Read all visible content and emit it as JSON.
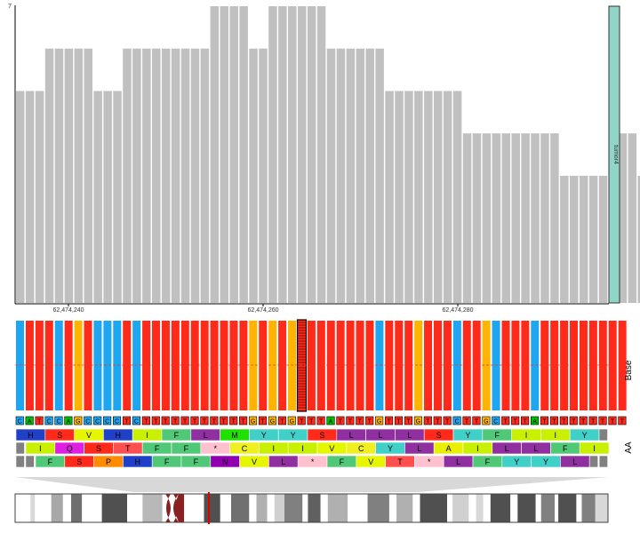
{
  "coverage": {
    "axis_max_label": "7",
    "values": [
      5,
      5,
      5,
      6,
      6,
      6,
      6,
      6,
      5,
      5,
      5,
      6,
      6,
      6,
      6,
      6,
      6,
      6,
      6,
      6,
      7,
      7,
      7,
      7,
      6,
      6,
      7,
      7,
      7,
      7,
      7,
      7,
      6,
      6,
      6,
      6,
      6,
      6,
      5,
      5,
      5,
      5,
      5,
      5,
      5,
      5,
      4,
      4,
      4,
      4,
      4,
      4,
      4,
      4,
      4,
      4,
      3,
      3,
      3,
      3,
      3,
      3,
      4,
      4,
      3
    ],
    "ymax": 7,
    "sample_label": "tumor4",
    "sample_color": "#90d5c8",
    "bar_color": "#c0c0c0",
    "ruler_labels": [
      "62,474,240",
      "62,474,260",
      "62,474,280"
    ]
  },
  "base_track": {
    "label": "Base",
    "colors": {
      "A": "#00c000",
      "C": "#1ea6f0",
      "G": "#ffb400",
      "T": "#ff2a1a"
    },
    "reads": "CTTTCTGTCCCTCTTTTTTTTTTTGTGTGTTTTTTTTCTTTGTTTCTTGCTTTCTTTTTTTTT",
    "reference": "CATCCAGCCCCTCTTTTTTTTTTTGTGTGTTTATTTTGTTTGTTTCTTGCTTTATTTTTTTTT",
    "highlight_index": 29
  },
  "aa_track": {
    "label": "AA",
    "frames": [
      [
        {
          "aa": "H",
          "color": "#2040c8"
        },
        {
          "aa": "S",
          "color": "#ff2a1a"
        },
        {
          "aa": "V",
          "color": "#e6f500"
        },
        {
          "aa": "H",
          "color": "#2040c8"
        },
        {
          "aa": "I",
          "color": "#c8f000"
        },
        {
          "aa": "F",
          "color": "#50c878"
        },
        {
          "aa": "L",
          "color": "#9030a0"
        },
        {
          "aa": "M",
          "color": "#20e000"
        },
        {
          "aa": "Y",
          "color": "#40d0c8"
        },
        {
          "aa": "Y",
          "color": "#40d0c8"
        },
        {
          "aa": "S",
          "color": "#ff2a1a"
        },
        {
          "aa": "L",
          "color": "#9030a0"
        },
        {
          "aa": "L",
          "color": "#9030a0"
        },
        {
          "aa": "L",
          "color": "#9030a0"
        },
        {
          "aa": "S",
          "color": "#ff2a1a"
        },
        {
          "aa": "Y",
          "color": "#40d0c8"
        },
        {
          "aa": "F",
          "color": "#50c878"
        },
        {
          "aa": "I",
          "color": "#c8f000"
        },
        {
          "aa": "I",
          "color": "#c8f000"
        },
        {
          "aa": "Y",
          "color": "#40d0c8"
        }
      ],
      [
        {
          "aa": "I",
          "color": "#c8f000"
        },
        {
          "aa": "Q",
          "color": "#e020e0"
        },
        {
          "aa": "S",
          "color": "#ff2a1a"
        },
        {
          "aa": "T",
          "color": "#ff5050"
        },
        {
          "aa": "F",
          "color": "#50c878"
        },
        {
          "aa": "F",
          "color": "#50c878"
        },
        {
          "aa": "*",
          "color": "#ffc0d0"
        },
        {
          "aa": "C",
          "color": "#f0f020"
        },
        {
          "aa": "I",
          "color": "#c8f000"
        },
        {
          "aa": "I",
          "color": "#c8f000"
        },
        {
          "aa": "V",
          "color": "#e6f500"
        },
        {
          "aa": "C",
          "color": "#f0f020"
        },
        {
          "aa": "Y",
          "color": "#40d0c8"
        },
        {
          "aa": "L",
          "color": "#9030a0"
        },
        {
          "aa": "A",
          "color": "#e8f000"
        },
        {
          "aa": "I",
          "color": "#c8f000"
        },
        {
          "aa": "L",
          "color": "#9030a0"
        },
        {
          "aa": "L",
          "color": "#9030a0"
        },
        {
          "aa": "F",
          "color": "#50c878"
        },
        {
          "aa": "I",
          "color": "#c8f000"
        }
      ],
      [
        {
          "aa": "F",
          "color": "#50c878"
        },
        {
          "aa": "S",
          "color": "#ff2a1a"
        },
        {
          "aa": "P",
          "color": "#ff8c00"
        },
        {
          "aa": "H",
          "color": "#2040c8"
        },
        {
          "aa": "F",
          "color": "#50c878"
        },
        {
          "aa": "F",
          "color": "#50c878"
        },
        {
          "aa": "N",
          "color": "#9000b0"
        },
        {
          "aa": "V",
          "color": "#e6f500"
        },
        {
          "aa": "L",
          "color": "#9030a0"
        },
        {
          "aa": "*",
          "color": "#ffc0d0"
        },
        {
          "aa": "F",
          "color": "#50c878"
        },
        {
          "aa": "V",
          "color": "#e6f500"
        },
        {
          "aa": "T",
          "color": "#ff5050"
        },
        {
          "aa": "*",
          "color": "#ffc0d0"
        },
        {
          "aa": "L",
          "color": "#9030a0"
        },
        {
          "aa": "F",
          "color": "#50c878"
        },
        {
          "aa": "Y",
          "color": "#40d0c8"
        },
        {
          "aa": "Y",
          "color": "#40d0c8"
        },
        {
          "aa": "L",
          "color": "#9030a0"
        }
      ]
    ]
  },
  "ideogram": {
    "bands": [
      {
        "w": 16,
        "color": "#ffffff"
      },
      {
        "w": 5,
        "color": "#d8d8d8"
      },
      {
        "w": 18,
        "color": "#ffffff"
      },
      {
        "w": 13,
        "color": "#a8a8a8"
      },
      {
        "w": 9,
        "color": "#ffffff"
      },
      {
        "w": 12,
        "color": "#707070"
      },
      {
        "w": 22,
        "color": "#ffffff"
      },
      {
        "w": 28,
        "color": "#505050"
      },
      {
        "w": 17,
        "color": "#ffffff"
      },
      {
        "w": 22,
        "color": "#b8b8b8"
      },
      {
        "w": 8,
        "color": "#ffffff"
      },
      {
        "w": 8,
        "color": "#8b2020"
      },
      {
        "w": 8,
        "color": "#8b2020"
      },
      {
        "w": 22,
        "color": "#ffffff"
      },
      {
        "w": 18,
        "color": "#505050"
      },
      {
        "w": 12,
        "color": "#ffffff"
      },
      {
        "w": 20,
        "color": "#707070"
      },
      {
        "w": 8,
        "color": "#ffffff"
      },
      {
        "w": 12,
        "color": "#b0b0b0"
      },
      {
        "w": 8,
        "color": "#ffffff"
      },
      {
        "w": 11,
        "color": "#d0d0d0"
      },
      {
        "w": 20,
        "color": "#808080"
      },
      {
        "w": 6,
        "color": "#ffffff"
      },
      {
        "w": 14,
        "color": "#606060"
      },
      {
        "w": 8,
        "color": "#ffffff"
      },
      {
        "w": 22,
        "color": "#b0b0b0"
      },
      {
        "w": 22,
        "color": "#ffffff"
      },
      {
        "w": 24,
        "color": "#808080"
      },
      {
        "w": 8,
        "color": "#ffffff"
      },
      {
        "w": 18,
        "color": "#b0b0b0"
      },
      {
        "w": 8,
        "color": "#ffffff"
      },
      {
        "w": 30,
        "color": "#505050"
      },
      {
        "w": 6,
        "color": "#ffffff"
      },
      {
        "w": 18,
        "color": "#d0d0d0"
      },
      {
        "w": 8,
        "color": "#ffffff"
      },
      {
        "w": 8,
        "color": "#d8d8d8"
      },
      {
        "w": 8,
        "color": "#ffffff"
      },
      {
        "w": 22,
        "color": "#505050"
      },
      {
        "w": 8,
        "color": "#ffffff"
      },
      {
        "w": 20,
        "color": "#505050"
      },
      {
        "w": 6,
        "color": "#ffffff"
      },
      {
        "w": 15,
        "color": "#808080"
      },
      {
        "w": 4,
        "color": "#ffffff"
      },
      {
        "w": 20,
        "color": "#505050"
      },
      {
        "w": 6,
        "color": "#ffffff"
      },
      {
        "w": 15,
        "color": "#808080"
      },
      {
        "w": 14,
        "color": "#d8d8d8"
      }
    ],
    "current_position_color": "#e00000"
  }
}
